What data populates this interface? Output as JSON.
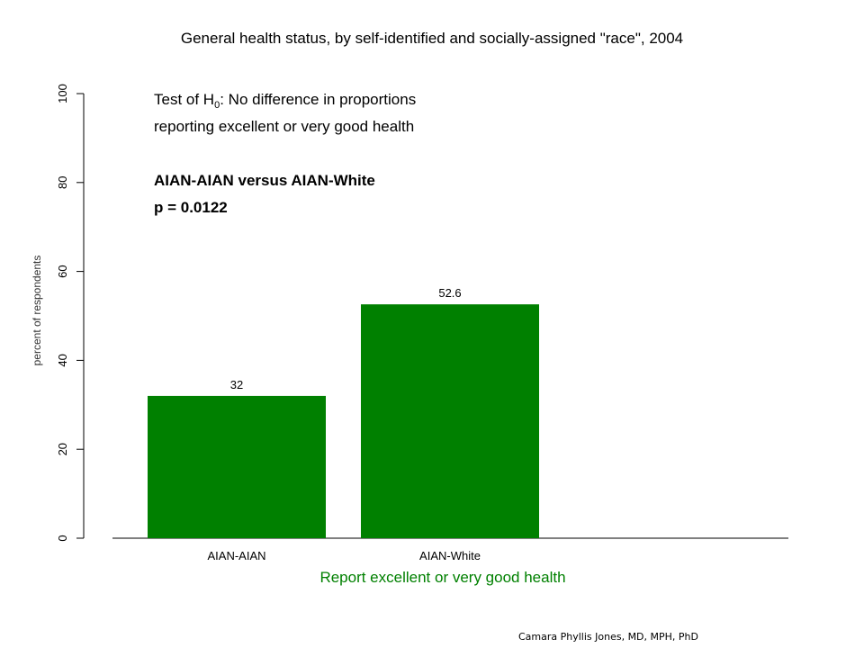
{
  "chart_data": {
    "type": "bar",
    "title": "General health status, by self-identified and socially-assigned \"race\", 2004",
    "categories": [
      "AIAN-AIAN",
      "AIAN-White"
    ],
    "values": [
      32,
      52.6
    ],
    "data_labels": [
      "32",
      "52.6"
    ],
    "xlabel": "Report excellent or very good health",
    "ylabel": "percent of respondents",
    "ylim": [
      0,
      100
    ],
    "yticks": [
      0,
      20,
      40,
      60,
      80,
      100
    ],
    "bar_color": "#008000",
    "xlabel_color": "#008000",
    "grid": false,
    "annotations": {
      "test_prefix": "Test of H",
      "test_subscript": "0",
      "test_suffix": ":  No difference in proportions",
      "test_line2": "reporting excellent or very good health",
      "comparison": "AIAN-AIAN versus AIAN-White",
      "pvalue": "p = 0.0122"
    }
  },
  "footer": {
    "credit": "Camara Phyllis Jones, MD, MPH, PhD"
  }
}
